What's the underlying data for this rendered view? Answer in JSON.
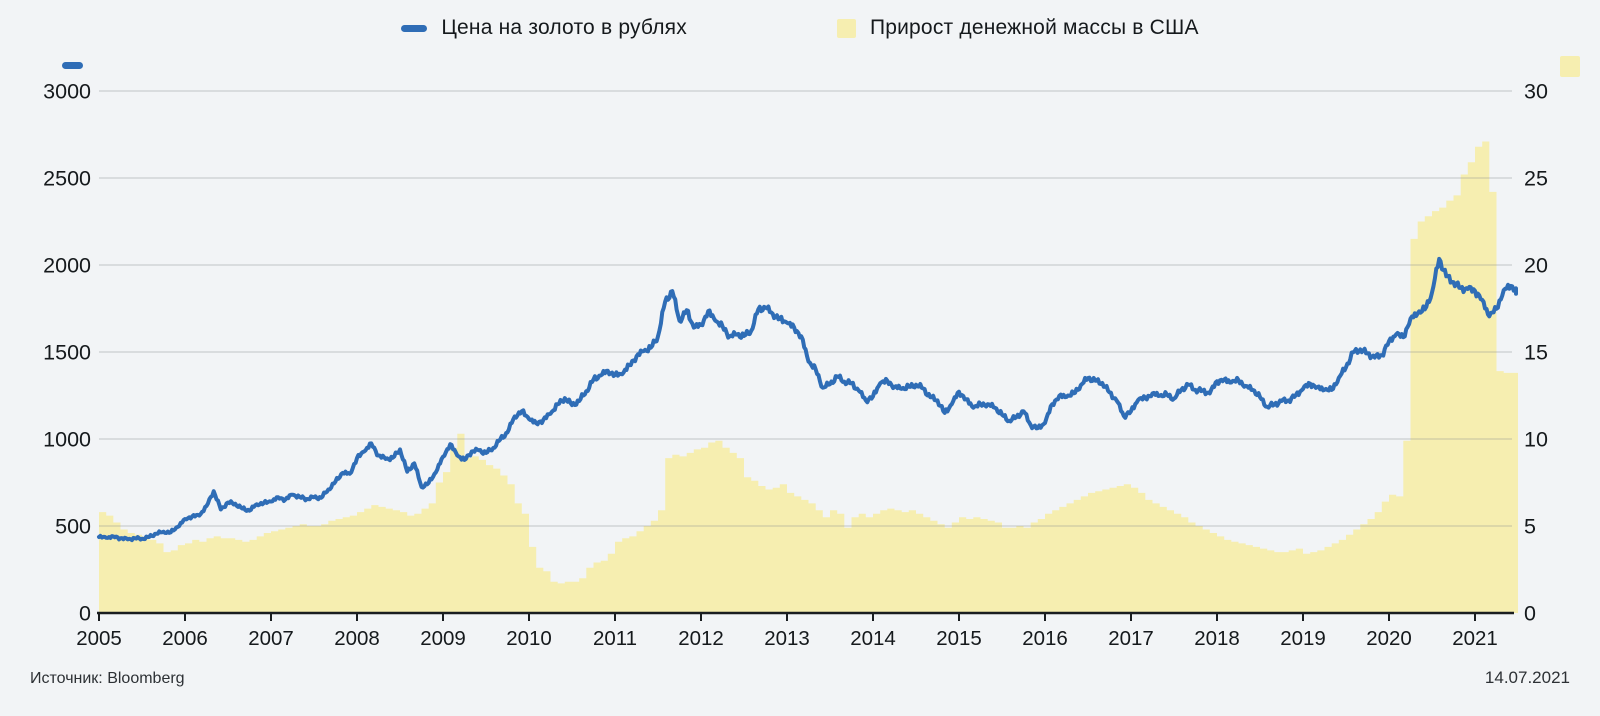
{
  "footer": {
    "source": "Источник: Bloomberg",
    "date": "14.07.2021"
  },
  "colors": {
    "background": "#f2f4f6",
    "gold_line": "#2f6db6",
    "money_bars": "#f6eeb0",
    "gridline": "#c9cdd2",
    "axis_line": "#1a1d20",
    "tick_label": "#15191c"
  },
  "chart_data": {
    "type": "line+bar",
    "title": "",
    "x_start_year": 2005,
    "x_axis": {
      "tick_years": [
        2005,
        2006,
        2007,
        2008,
        2009,
        2010,
        2011,
        2012,
        2013,
        2014,
        2015,
        2016,
        2017,
        2018,
        2019,
        2020,
        2021
      ]
    },
    "left_axis": {
      "ticks": [
        0,
        500,
        1000,
        1500,
        2000,
        2500,
        3000
      ],
      "range": [
        0,
        3000
      ],
      "series": "Цена на золото в рублях"
    },
    "right_axis": {
      "ticks": [
        0,
        5,
        10,
        15,
        20,
        25,
        30
      ],
      "range": [
        0,
        30
      ],
      "series": "Прирост денежной массы в США"
    },
    "series": [
      {
        "name": "Цена на золото в рублях",
        "type": "line",
        "axis": "left",
        "color": "#2f6db6",
        "start": "2005-01",
        "monthly_values": [
          437,
          432,
          440,
          430,
          423,
          430,
          427,
          437,
          456,
          467,
          463,
          495,
          540,
          555,
          560,
          615,
          700,
          595,
          635,
          628,
          600,
          588,
          625,
          632,
          640,
          665,
          652,
          680,
          667,
          655,
          665,
          662,
          710,
          755,
          805,
          800,
          890,
          928,
          975,
          905,
          885,
          892,
          940,
          812,
          860,
          725,
          748,
          808,
          898,
          970,
          905,
          880,
          928,
          935,
          920,
          948,
          998,
          1038,
          1130,
          1160,
          1115,
          1090,
          1110,
          1145,
          1200,
          1235,
          1195,
          1218,
          1275,
          1342,
          1365,
          1392,
          1368,
          1372,
          1425,
          1475,
          1505,
          1525,
          1590,
          1790,
          1850,
          1680,
          1740,
          1640,
          1655,
          1735,
          1680,
          1648,
          1590,
          1600,
          1592,
          1622,
          1745,
          1755,
          1720,
          1690,
          1668,
          1640,
          1590,
          1445,
          1400,
          1295,
          1315,
          1360,
          1330,
          1320,
          1278,
          1222,
          1245,
          1320,
          1335,
          1300,
          1288,
          1300,
          1312,
          1290,
          1240,
          1222,
          1150,
          1200,
          1272,
          1228,
          1180,
          1200,
          1200,
          1180,
          1140,
          1105,
          1125,
          1160,
          1080,
          1062,
          1092,
          1200,
          1248,
          1242,
          1262,
          1310,
          1350,
          1335,
          1322,
          1268,
          1220,
          1132,
          1160,
          1225,
          1235,
          1262,
          1248,
          1255,
          1232,
          1282,
          1312,
          1282,
          1278,
          1262,
          1332,
          1342,
          1325,
          1338,
          1305,
          1282,
          1240,
          1185,
          1198,
          1218,
          1222,
          1252,
          1288,
          1318,
          1298,
          1282,
          1282,
          1352,
          1412,
          1498,
          1515,
          1492,
          1468,
          1482,
          1562,
          1602,
          1585,
          1692,
          1722,
          1745,
          1842,
          2035,
          1935,
          1902,
          1868,
          1862,
          1852,
          1800,
          1705,
          1748,
          1855,
          1880,
          1835
        ]
      },
      {
        "name": "Прирост денежной массы в США",
        "type": "bar",
        "axis": "right",
        "color": "#f6eeb0",
        "start": "2005-01",
        "monthly_values": [
          5.8,
          5.6,
          5.2,
          4.8,
          4.6,
          4.5,
          4.4,
          4.2,
          4.0,
          3.5,
          3.6,
          3.9,
          4.0,
          4.2,
          4.1,
          4.3,
          4.4,
          4.3,
          4.3,
          4.2,
          4.1,
          4.2,
          4.4,
          4.6,
          4.7,
          4.8,
          4.9,
          5.0,
          5.1,
          5.0,
          5.0,
          5.1,
          5.3,
          5.4,
          5.5,
          5.6,
          5.8,
          6.0,
          6.2,
          6.1,
          6.0,
          5.9,
          5.8,
          5.6,
          5.7,
          6.0,
          6.3,
          7.5,
          8.1,
          9.5,
          10.3,
          8.9,
          9.0,
          8.8,
          8.5,
          8.3,
          7.9,
          7.4,
          6.3,
          5.7,
          3.8,
          2.6,
          2.4,
          1.8,
          1.7,
          1.8,
          1.8,
          2.0,
          2.6,
          2.9,
          3.0,
          3.4,
          4.1,
          4.3,
          4.4,
          4.7,
          5.0,
          5.3,
          5.9,
          8.9,
          9.1,
          9.0,
          9.2,
          9.4,
          9.5,
          9.8,
          9.9,
          9.5,
          9.2,
          8.9,
          7.8,
          7.6,
          7.3,
          7.1,
          7.2,
          7.4,
          6.9,
          6.7,
          6.5,
          6.3,
          5.9,
          5.5,
          5.9,
          5.7,
          4.9,
          5.5,
          5.7,
          5.5,
          5.7,
          5.9,
          6.0,
          5.9,
          5.8,
          5.9,
          5.7,
          5.5,
          5.3,
          5.1,
          4.9,
          5.2,
          5.5,
          5.4,
          5.5,
          5.4,
          5.3,
          5.2,
          4.9,
          4.9,
          5.0,
          4.9,
          5.2,
          5.4,
          5.7,
          5.9,
          6.1,
          6.3,
          6.5,
          6.7,
          6.9,
          7.0,
          7.1,
          7.2,
          7.3,
          7.4,
          7.2,
          6.9,
          6.5,
          6.3,
          6.1,
          5.9,
          5.7,
          5.5,
          5.2,
          5.0,
          4.8,
          4.6,
          4.4,
          4.2,
          4.1,
          4.0,
          3.9,
          3.8,
          3.7,
          3.6,
          3.5,
          3.5,
          3.6,
          3.7,
          3.4,
          3.5,
          3.6,
          3.8,
          4.0,
          4.2,
          4.5,
          4.8,
          5.1,
          5.4,
          5.8,
          6.4,
          6.8,
          6.7,
          9.9,
          21.5,
          22.5,
          22.8,
          23.1,
          23.3,
          23.7,
          24.0,
          25.2,
          25.9,
          26.8,
          27.1,
          24.2,
          13.9,
          13.8,
          13.8
        ]
      }
    ]
  }
}
